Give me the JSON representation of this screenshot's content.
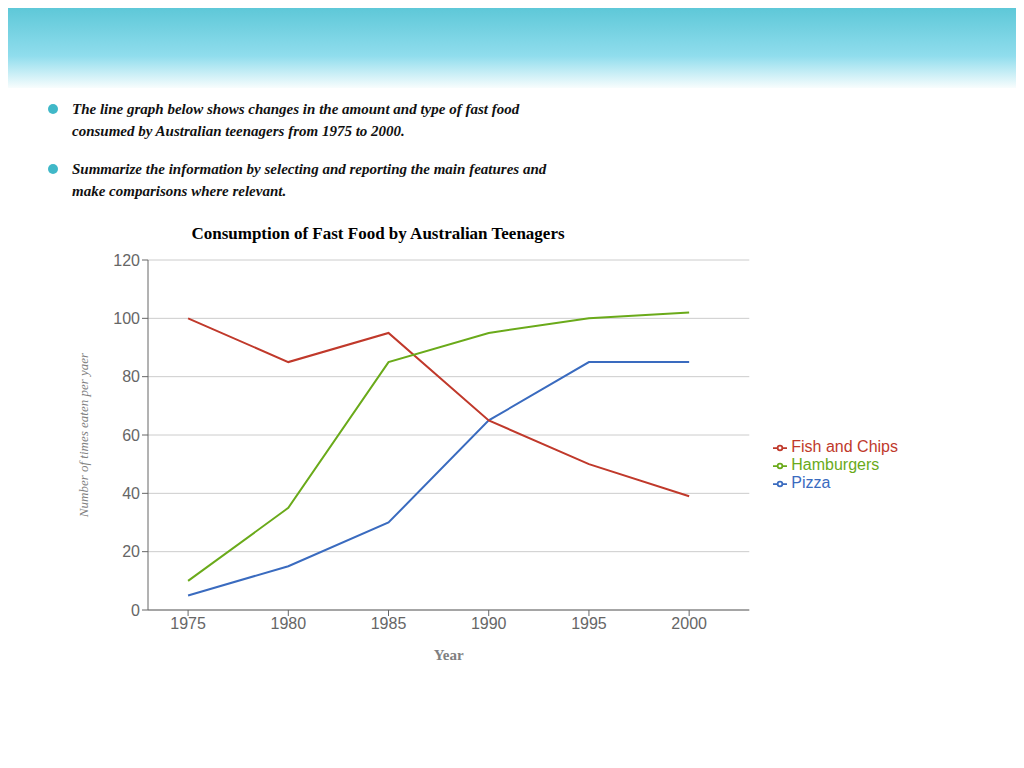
{
  "chart_data": {
    "type": "line",
    "title": "Consumption of Fast Food by Australian Teenagers",
    "annotations": [
      "The line graph below shows changes in the amount and type of fast food\nconsumed by Australian teenagers from 1975 to 2000.",
      "Summarize the information by selecting and reporting the main features and\nmake comparisons where relevant."
    ],
    "xlabel": "Year",
    "ylabel": "Number of times eaten per yaer",
    "x": [
      1975,
      1980,
      1985,
      1990,
      1995,
      2000
    ],
    "xlim": [
      1973,
      2003
    ],
    "xticks": [
      1975,
      1980,
      1985,
      1990,
      1995,
      2000
    ],
    "ylim": [
      0,
      120
    ],
    "yticks": [
      0,
      20,
      40,
      60,
      80,
      100,
      120
    ],
    "grid": true,
    "legend": "right",
    "series": [
      {
        "name": "Pizza",
        "color": "#3a6bbf",
        "values": [
          5,
          15,
          30,
          65,
          85,
          85
        ]
      },
      {
        "name": "Fish and Chips",
        "color": "#c0392b",
        "values": [
          100,
          85,
          95,
          65,
          50,
          39
        ]
      },
      {
        "name": "Hamburgers",
        "color": "#6aaa1a",
        "values": [
          10,
          35,
          85,
          95,
          100,
          102
        ]
      }
    ]
  }
}
